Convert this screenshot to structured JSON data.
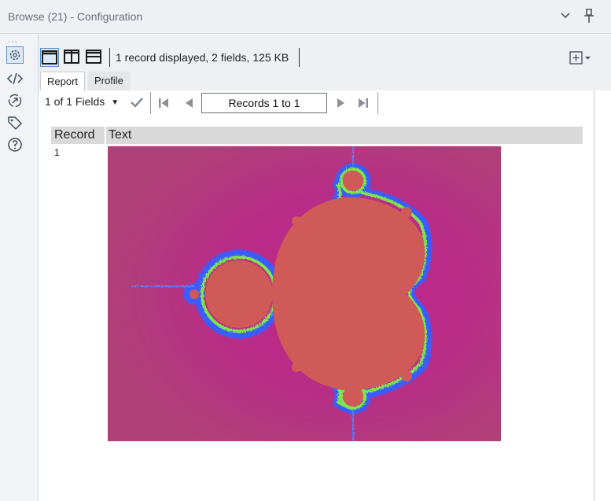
{
  "window": {
    "title": "Browse (21) - Configuration",
    "collapse_icon": "chevron-down-icon",
    "pin_icon": "pin-icon"
  },
  "sidebar": {
    "dots": "...",
    "items": [
      {
        "icon": "gear-icon",
        "active": true
      },
      {
        "icon": "code-icon",
        "active": false
      },
      {
        "icon": "connection-icon",
        "active": false
      },
      {
        "icon": "tag-icon",
        "active": false
      },
      {
        "icon": "help-icon",
        "active": false
      }
    ]
  },
  "toolbar": {
    "summary": "1 record displayed, 2 fields, 125 KB",
    "layouts": [
      "single-pane-icon",
      "split-vertical-icon",
      "split-horizontal-icon"
    ]
  },
  "tabs": [
    {
      "label": "Report",
      "active": true
    },
    {
      "label": "Profile",
      "active": false
    }
  ],
  "navigation": {
    "fields_label": "1 of 1 Fields",
    "records_label": "Records 1 to 1"
  },
  "table": {
    "columns": [
      "Record",
      "Text"
    ],
    "rows": [
      {
        "record": "1",
        "text_content": "mandelbrot-image"
      }
    ]
  },
  "colors": {
    "fractal_body": "#cf5a58",
    "fractal_background": "#b5377f",
    "fractal_glow": "#c0248a",
    "fractal_fringe_blue": "#3a5cff",
    "fractal_fringe_green": "#7ee84a",
    "accent": "#5d8fc9"
  }
}
